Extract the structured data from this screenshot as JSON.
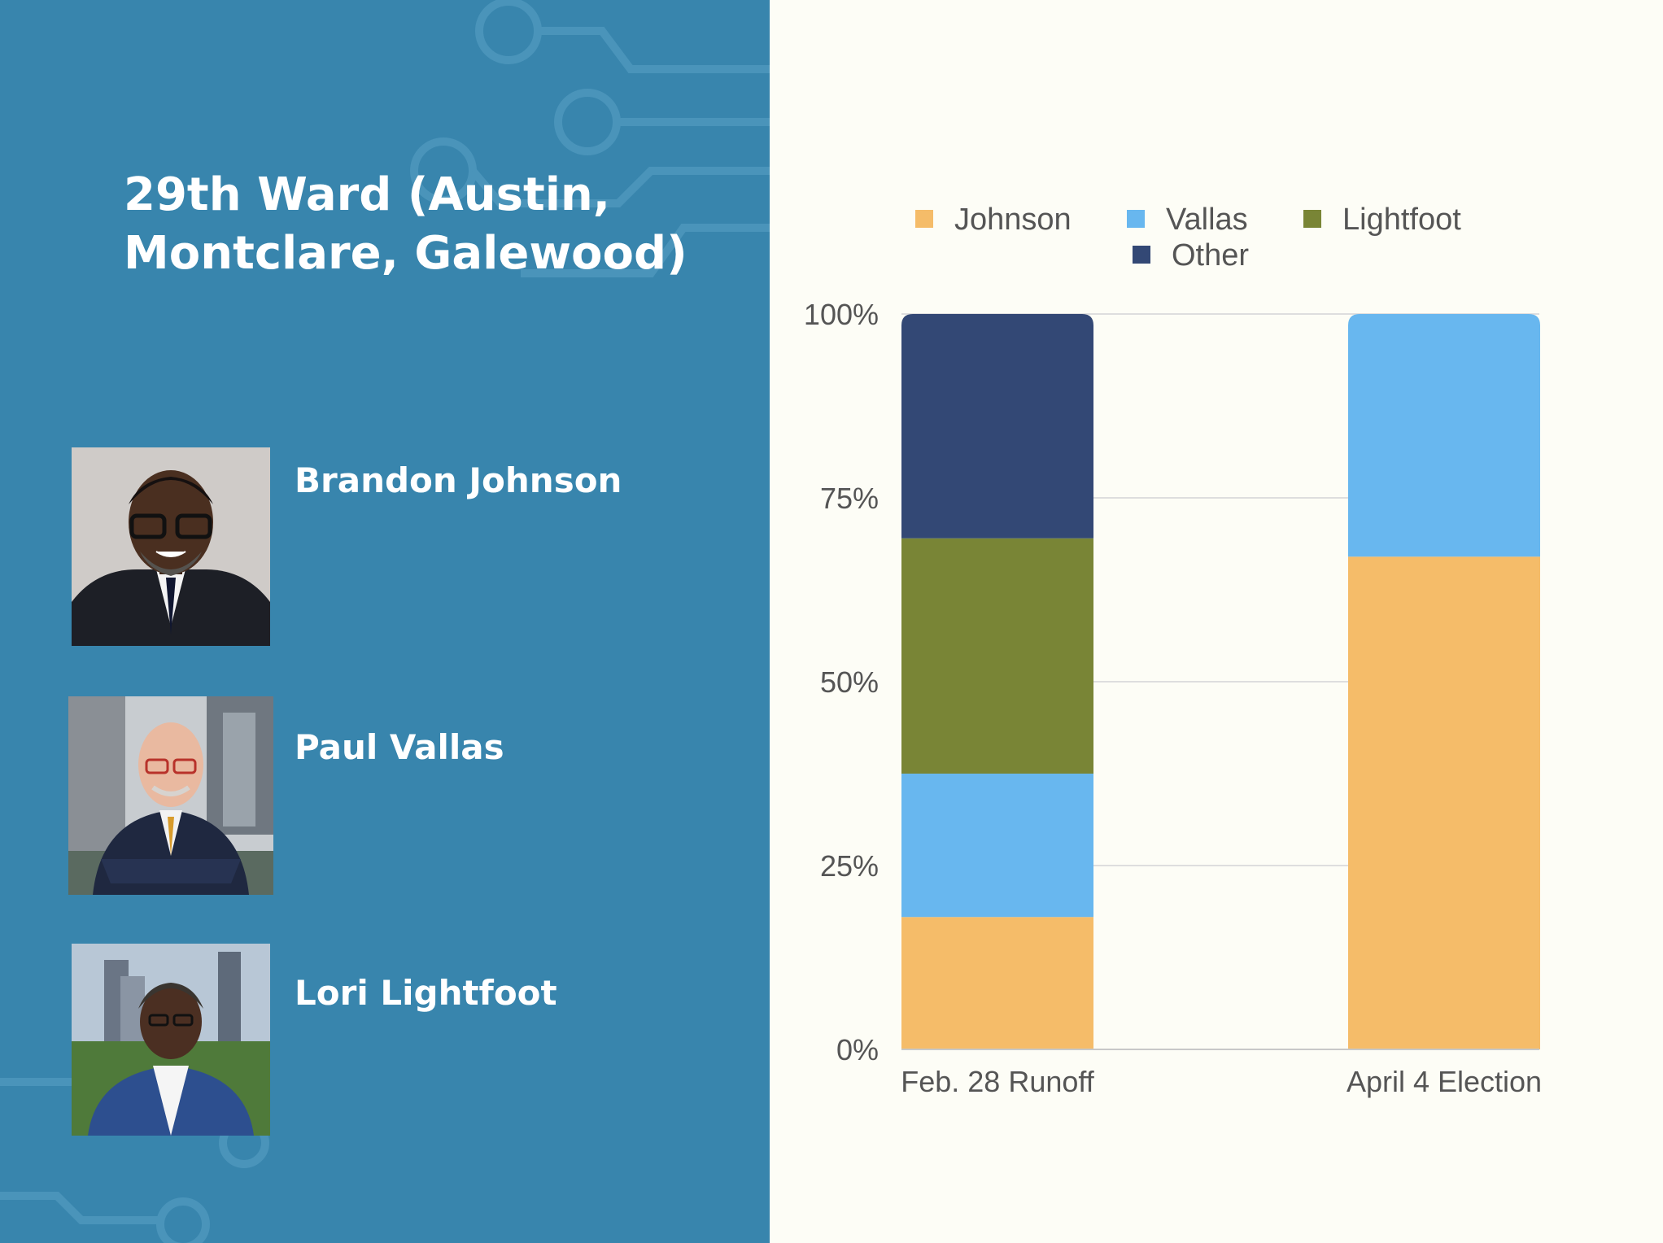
{
  "colors": {
    "panel": "#3885ad",
    "background": "#fdfdf6",
    "johnson": "#f5bc69",
    "vallas": "#68b7ef",
    "lightfoot": "#798536",
    "other": "#334875"
  },
  "left_panel": {
    "title": "29th Ward (Austin, Montclare, Galewood)",
    "candidates": [
      {
        "name": "Brandon Johnson",
        "photo_icon": "brandon-johnson-portrait"
      },
      {
        "name": "Paul Vallas",
        "photo_icon": "paul-vallas-portrait"
      },
      {
        "name": "Lori Lightfoot",
        "photo_icon": "lori-lightfoot-portrait"
      }
    ]
  },
  "chart_data": {
    "type": "bar",
    "stacked": true,
    "categories": [
      "Feb. 28 Runoff",
      "April 4 Election"
    ],
    "series": [
      {
        "name": "Johnson",
        "values": [
          18,
          67
        ]
      },
      {
        "name": "Vallas",
        "values": [
          19.5,
          33
        ]
      },
      {
        "name": "Lightfoot",
        "values": [
          32,
          0
        ]
      },
      {
        "name": "Other",
        "values": [
          30.5,
          0
        ]
      }
    ],
    "ylim": [
      0,
      100
    ],
    "yticks": [
      "0%",
      "25%",
      "50%",
      "75%",
      "100%"
    ],
    "grid": true,
    "legend_position": "top",
    "xlabel": "",
    "ylabel": ""
  }
}
